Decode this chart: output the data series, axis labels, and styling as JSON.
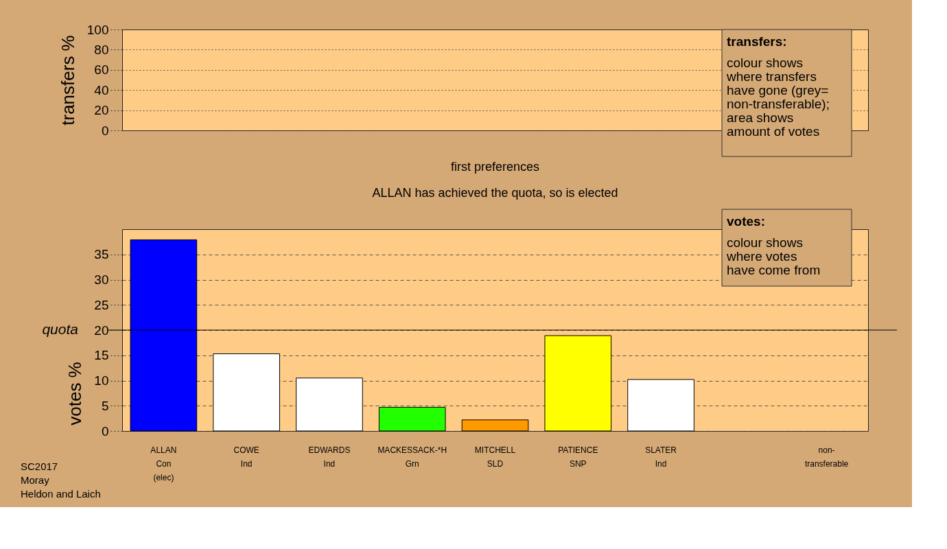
{
  "chart_data": [
    {
      "type": "bar",
      "ylabel": "transfers %",
      "ylim": [
        0,
        100
      ],
      "yticks": [
        0,
        20,
        40,
        60,
        80,
        100
      ],
      "grid": true,
      "tick_labels": "y",
      "values": [
        null,
        null,
        null,
        null,
        null,
        null,
        null,
        null,
        null
      ],
      "annotations": [
        "transfers:\ncolour shows\nwhere transfers\nhave gone (grey=\nnon-transferable);\narea shows\namount of votes"
      ]
    },
    {
      "type": "bar",
      "title": "first preferences",
      "subtitle": "ALLAN has achieved the quota, so is elected",
      "ylabel": "votes %",
      "ylim": [
        0,
        40
      ],
      "yticks": [
        0,
        5,
        10,
        15,
        20,
        25,
        30,
        35
      ],
      "grid": true,
      "categories": [
        "ALLAN\nCon\n(elec)",
        "COWE\nInd",
        "EDWARDS\nInd",
        "MACKESSACK-*H\nGrn",
        "MITCHELL\nSLD",
        "PATIENCE\nSNP",
        "SLATER\nInd",
        null,
        "non-\ntransferable"
      ],
      "values": [
        37.9,
        15.3,
        10.5,
        4.7,
        2.2,
        18.9,
        10.2,
        null,
        null
      ],
      "colors": [
        "#0000ff",
        "#ffffff",
        "#ffffff",
        "#22ff00",
        "#ff9900",
        "#ffff00",
        "#ffffff",
        null,
        null
      ],
      "ref_lines": [
        {
          "axis": "y",
          "value": 20,
          "label": "quota"
        }
      ],
      "annotations": [
        "votes:\ncolour shows\nwhere votes\nhave come from",
        "SC2017\nMoray\nHeldon and Laich"
      ]
    }
  ]
}
